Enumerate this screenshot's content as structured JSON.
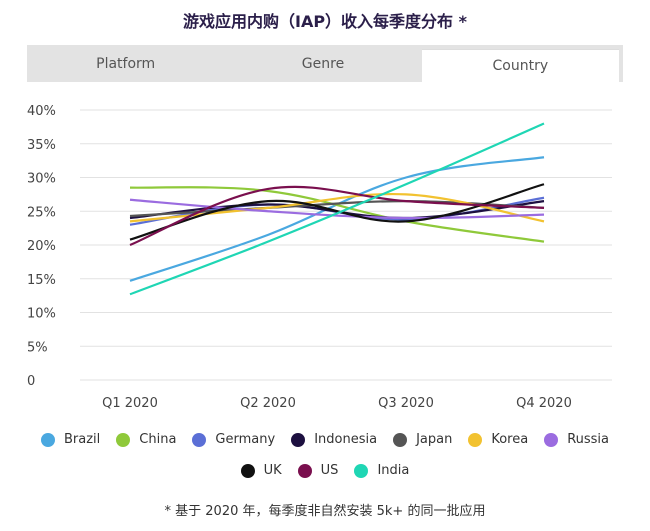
{
  "title": "游戏应用内购（IAP）收入每季度分布 *",
  "tabs": [
    {
      "label": "Platform"
    },
    {
      "label": "Genre"
    },
    {
      "label": "Country",
      "active": true
    }
  ],
  "footnote": "* 基于 2020 年，每季度非自然安装 5k+ 的同一批应用",
  "chart_data": {
    "type": "line",
    "categories": [
      "Q1 2020",
      "Q2 2020",
      "Q3 2020",
      "Q4 2020"
    ],
    "y_tick_labels": [
      "0",
      "5%",
      "10%",
      "15%",
      "20%",
      "25%",
      "30%",
      "35%",
      "40%"
    ],
    "ylim": [
      0,
      40
    ],
    "grid": true,
    "legend_position": "bottom",
    "series": [
      {
        "name": "Brazil",
        "color": "#4aa8e0",
        "values": [
          14.7,
          21.5,
          30.0,
          33.0
        ]
      },
      {
        "name": "China",
        "color": "#8fc93a",
        "values": [
          28.5,
          28.0,
          23.5,
          20.5
        ]
      },
      {
        "name": "Germany",
        "color": "#5b6fd6",
        "values": [
          23.0,
          26.0,
          23.8,
          27.0
        ]
      },
      {
        "name": "Indonesia",
        "color": "#1d1040",
        "values": [
          24.0,
          26.0,
          24.0,
          26.5
        ]
      },
      {
        "name": "Japan",
        "color": "#555555",
        "values": [
          24.3,
          25.5,
          26.5,
          25.5
        ]
      },
      {
        "name": "Korea",
        "color": "#f2c230",
        "values": [
          23.5,
          25.5,
          27.5,
          23.5
        ]
      },
      {
        "name": "Russia",
        "color": "#9b6ce0",
        "values": [
          26.7,
          25.0,
          24.0,
          24.5
        ]
      },
      {
        "name": "UK",
        "color": "#111111",
        "values": [
          20.8,
          26.5,
          23.5,
          29.0
        ]
      },
      {
        "name": "US",
        "color": "#7a0f4e",
        "values": [
          20.0,
          28.3,
          26.5,
          25.5
        ]
      },
      {
        "name": "India",
        "color": "#1fd6b4",
        "values": [
          12.7,
          20.5,
          29.0,
          38.0
        ]
      }
    ]
  }
}
